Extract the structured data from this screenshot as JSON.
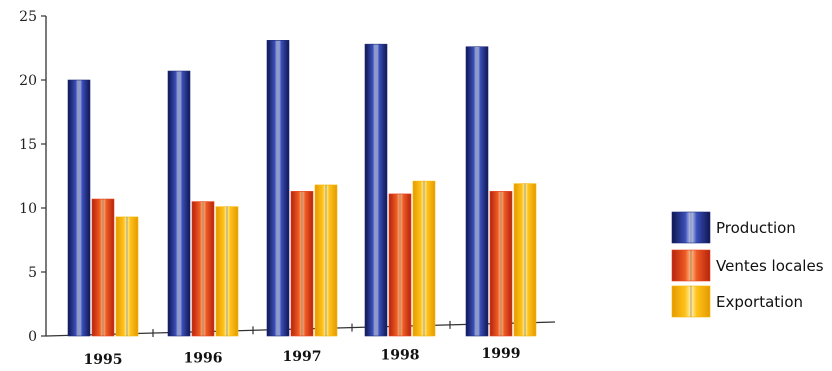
{
  "chart_data": {
    "type": "bar",
    "categories": [
      "1995",
      "1996",
      "1997",
      "1998",
      "1999"
    ],
    "series": [
      {
        "name": "Production",
        "values": [
          20,
          20.7,
          23.1,
          22.8,
          22.6
        ],
        "color": "#1e2a7c"
      },
      {
        "name": "Ventes locales",
        "values": [
          10.7,
          10.5,
          11.3,
          11.1,
          11.3
        ],
        "color": "#e8401c"
      },
      {
        "name": "Exportation",
        "values": [
          9.3,
          10.1,
          11.8,
          12.1,
          11.9
        ],
        "color": "#f7b500"
      }
    ],
    "ylim": [
      0,
      25
    ],
    "yticks": [
      "0",
      "5",
      "10",
      "15",
      "20",
      "25"
    ],
    "legend_position": "right",
    "grid": false,
    "title": "",
    "xlabel": "",
    "ylabel": ""
  }
}
